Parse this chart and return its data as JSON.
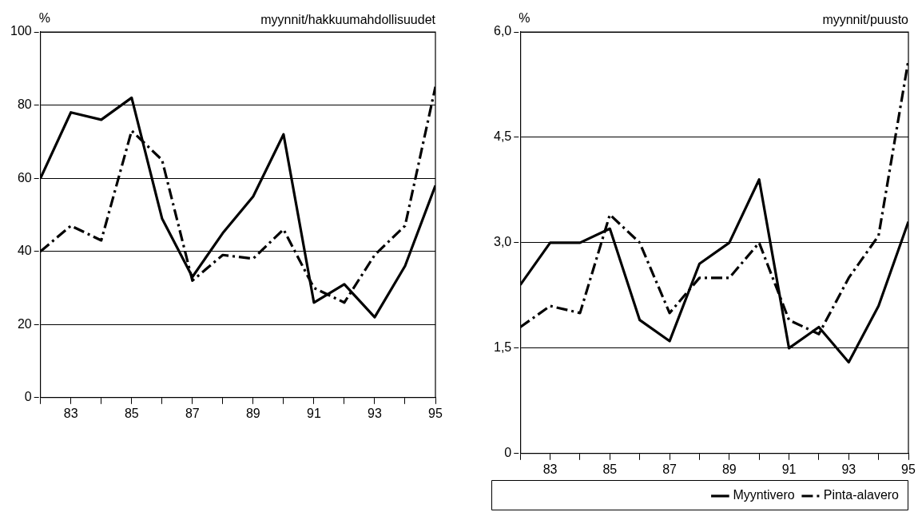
{
  "chart_data": [
    {
      "type": "line",
      "title": "myynnit/hakkuumahdollisuudet",
      "ylabel": "%",
      "x": [
        82,
        83,
        84,
        85,
        86,
        87,
        88,
        89,
        90,
        91,
        92,
        93,
        94,
        95
      ],
      "series": [
        {
          "color": "#000000",
          "line_style": "solid",
          "values": [
            60,
            78,
            76,
            82,
            49,
            33,
            45,
            55,
            72,
            26,
            31,
            22,
            36,
            58
          ]
        },
        {
          "color": "#000000",
          "line_style": "dashed",
          "values": [
            40,
            47,
            43,
            73,
            65,
            32,
            39,
            38,
            46,
            30,
            26,
            39,
            47,
            85
          ]
        }
      ],
      "xlim": [
        82,
        95
      ],
      "xticks": [
        {
          "value": 82,
          "label": null
        },
        83,
        {
          "value": 84,
          "label": null
        },
        85,
        {
          "value": 86,
          "label": null
        },
        87,
        {
          "value": 88,
          "label": null
        },
        89,
        {
          "value": 90,
          "label": null
        },
        91,
        {
          "value": 92,
          "label": null
        },
        93,
        {
          "value": 94,
          "label": null
        },
        95
      ],
      "ylim": [
        0,
        100
      ],
      "yticks": [
        0,
        20,
        40,
        60,
        80,
        100
      ],
      "grid": "y",
      "legend": false,
      "marker": "none"
    },
    {
      "type": "line",
      "title": "myynnit/puusto",
      "ylabel": "%",
      "x": [
        82,
        83,
        84,
        85,
        86,
        87,
        88,
        89,
        90,
        91,
        92,
        93,
        94,
        95
      ],
      "series": [
        {
          "name": "Myyntivero",
          "color": "#000000",
          "line_style": "solid",
          "values": [
            2.4,
            3.0,
            3.0,
            3.2,
            1.9,
            1.6,
            2.7,
            3.0,
            3.9,
            1.5,
            1.8,
            1.3,
            2.1,
            3.3
          ]
        },
        {
          "name": "Pinta-alavero",
          "color": "#000000",
          "line_style": "dashed",
          "values": [
            1.8,
            2.1,
            2.0,
            3.4,
            3.0,
            2.0,
            2.5,
            2.5,
            3.0,
            1.9,
            1.7,
            2.5,
            3.1,
            5.6
          ]
        }
      ],
      "xlim": [
        82,
        95
      ],
      "xticks": [
        {
          "value": 82,
          "label": null
        },
        83,
        {
          "value": 84,
          "label": null
        },
        85,
        {
          "value": 86,
          "label": null
        },
        87,
        {
          "value": 88,
          "label": null
        },
        89,
        {
          "value": 90,
          "label": null
        },
        91,
        {
          "value": 92,
          "label": null
        },
        93,
        {
          "value": 94,
          "label": null
        },
        95
      ],
      "ylim": [
        0,
        6
      ],
      "yticks": [
        0,
        {
          "value": 1.5,
          "label": "1,5"
        },
        {
          "value": 3,
          "label": "3,0"
        },
        {
          "value": 4.5,
          "label": "4,5"
        },
        {
          "value": 6,
          "label": "6,0"
        }
      ],
      "grid": "y",
      "legend": "bottom right",
      "marker": "none"
    }
  ]
}
